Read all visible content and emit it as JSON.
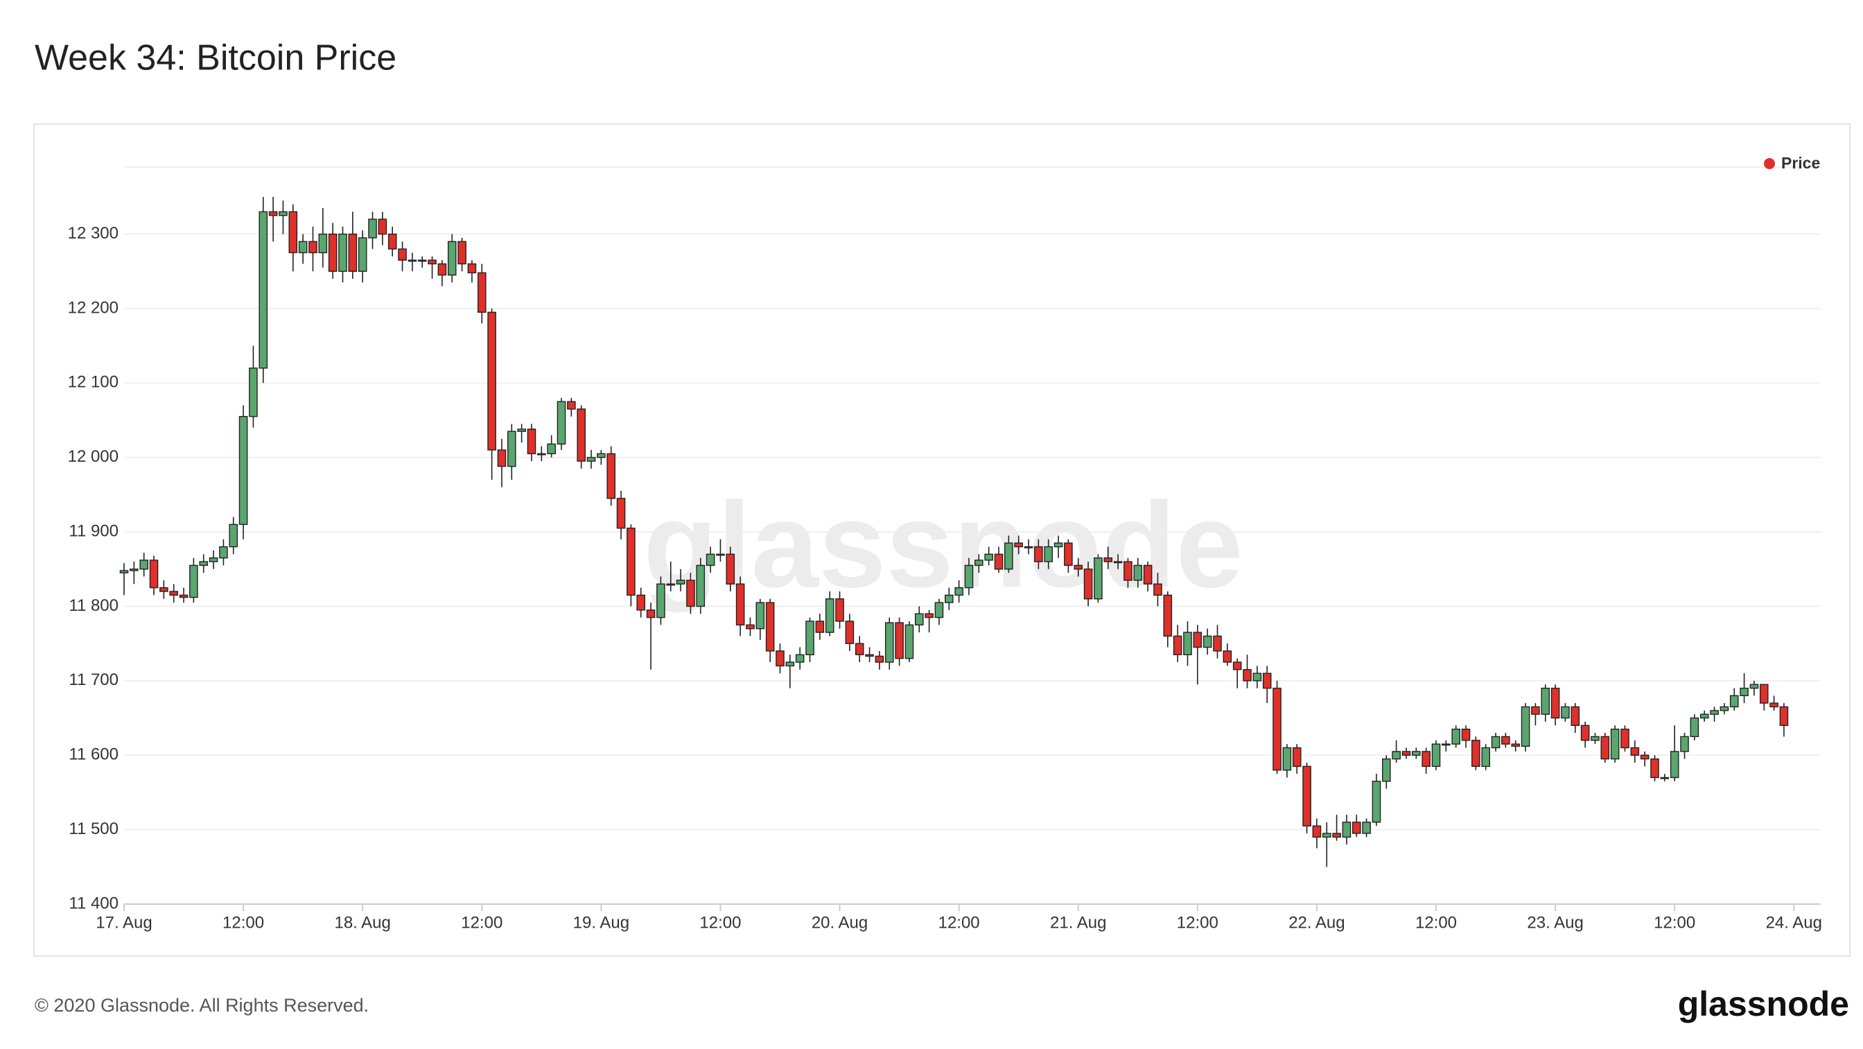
{
  "chart_data": {
    "type": "candlestick",
    "title": "Week 34: Bitcoin Price",
    "watermark": "glassnode",
    "x": [
      0,
      1,
      2,
      3,
      4,
      5,
      6,
      7,
      8,
      9,
      10,
      11,
      12,
      13,
      14,
      15,
      16,
      17,
      18,
      19,
      20,
      21,
      22,
      23,
      24,
      25,
      26,
      27,
      28,
      29,
      30,
      31,
      32,
      33,
      34,
      35,
      36,
      37,
      38,
      39,
      40,
      41,
      42,
      43,
      44,
      45,
      46,
      47,
      48,
      49,
      50,
      51,
      52,
      53,
      54,
      55,
      56,
      57,
      58,
      59,
      60,
      61,
      62,
      63,
      64,
      65,
      66,
      67,
      68,
      69,
      70,
      71,
      72,
      73,
      74,
      75,
      76,
      77,
      78,
      79,
      80,
      81,
      82,
      83,
      84,
      85,
      86,
      87,
      88,
      89,
      90,
      91,
      92,
      93,
      94,
      95,
      96,
      97,
      98,
      99,
      100,
      101,
      102,
      103,
      104,
      105,
      106,
      107,
      108,
      109,
      110,
      111,
      112,
      113,
      114,
      115,
      116,
      117,
      118,
      119,
      120,
      121,
      122,
      123,
      124,
      125,
      126,
      127,
      128,
      129,
      130,
      131,
      132,
      133,
      134,
      135,
      136,
      137,
      138,
      139,
      140,
      141,
      142,
      143,
      144,
      145,
      146,
      147,
      148,
      149,
      150,
      151,
      152,
      153,
      154,
      155,
      156,
      157,
      158,
      159,
      160,
      161,
      162,
      163,
      164,
      165,
      166,
      167
    ],
    "xlim": [
      0,
      170.7
    ],
    "xticks": [
      {
        "value": 0,
        "label": "17. Aug"
      },
      {
        "value": 12,
        "label": "12:00"
      },
      {
        "value": 24,
        "label": "18. Aug"
      },
      {
        "value": 36,
        "label": "12:00"
      },
      {
        "value": 48,
        "label": "19. Aug"
      },
      {
        "value": 60,
        "label": "12:00"
      },
      {
        "value": 72,
        "label": "20. Aug"
      },
      {
        "value": 84,
        "label": "12:00"
      },
      {
        "value": 96,
        "label": "21. Aug"
      },
      {
        "value": 108,
        "label": "12:00"
      },
      {
        "value": 120,
        "label": "22. Aug"
      },
      {
        "value": 132,
        "label": "12:00"
      },
      {
        "value": 144,
        "label": "23. Aug"
      },
      {
        "value": 156,
        "label": "12:00"
      },
      {
        "value": 168,
        "label": "24. Aug"
      }
    ],
    "ylim": [
      11400,
      12390
    ],
    "yticks": [
      {
        "value": 11400,
        "label": "11 400"
      },
      {
        "value": 11500,
        "label": "11 500"
      },
      {
        "value": 11600,
        "label": "11 600"
      },
      {
        "value": 11700,
        "label": "11 700"
      },
      {
        "value": 11800,
        "label": "11 800"
      },
      {
        "value": 11900,
        "label": "11 900"
      },
      {
        "value": 12000,
        "label": "12 000"
      },
      {
        "value": 12100,
        "label": "12 100"
      },
      {
        "value": 12200,
        "label": "12 200"
      },
      {
        "value": 12300,
        "label": "12 300"
      }
    ],
    "grid": true,
    "legend": "top-right",
    "series": [
      {
        "name": "Price",
        "color": "#e0302a",
        "up_color": "#5aa66f",
        "down_color": "#e0302a",
        "open": [
          11845,
          11848,
          11850,
          11862,
          11825,
          11820,
          11815,
          11812,
          11855,
          11860,
          11865,
          11880,
          11910,
          12055,
          12120,
          12330,
          12325,
          12330,
          12275,
          12290,
          12275,
          12300,
          12250,
          12300,
          12250,
          12295,
          12320,
          12300,
          12280,
          12265,
          12265,
          12265,
          12260,
          12245,
          12290,
          12260,
          12248,
          12195,
          12010,
          11988,
          12035,
          12038,
          12005,
          12005,
          12018,
          12075,
          12065,
          11995,
          12000,
          12005,
          11945,
          11905,
          11815,
          11795,
          11785,
          11830,
          11830,
          11835,
          11800,
          11855,
          11870,
          11870,
          11830,
          11775,
          11770,
          11805,
          11740,
          11720,
          11725,
          11735,
          11780,
          11765,
          11810,
          11780,
          11750,
          11735,
          11733,
          11725,
          11778,
          11730,
          11775,
          11790,
          11785,
          11805,
          11815,
          11825,
          11855,
          11862,
          11870,
          11850,
          11885,
          11880,
          11880,
          11860,
          11880,
          11885,
          11855,
          11850,
          11810,
          11865,
          11860,
          11860,
          11835,
          11855,
          11830,
          11815,
          11760,
          11735,
          11765,
          11745,
          11760,
          11740,
          11725,
          11715,
          11700,
          11710,
          11690,
          11580,
          11610,
          11585,
          11505,
          11490,
          11495,
          11490,
          11510,
          11495,
          11510,
          11565,
          11595,
          11605,
          11600,
          11605,
          11585,
          11615,
          11615,
          11635,
          11620,
          11585,
          11610,
          11625,
          11615,
          11612,
          11665,
          11655,
          11690,
          11650,
          11665,
          11640,
          11620,
          11625,
          11595,
          11635,
          11610,
          11600,
          11595,
          11570,
          11570,
          11605,
          11625,
          11650,
          11655,
          11660,
          11665,
          11680,
          11690,
          11695,
          11670,
          11665
        ],
        "high": [
          11858,
          11860,
          11872,
          11868,
          11835,
          11830,
          11825,
          11865,
          11870,
          11875,
          11890,
          11920,
          12070,
          12150,
          12350,
          12350,
          12345,
          12340,
          12300,
          12310,
          12335,
          12315,
          12310,
          12330,
          12305,
          12330,
          12330,
          12310,
          12290,
          12275,
          12270,
          12270,
          12265,
          12300,
          12295,
          12265,
          12260,
          12200,
          12025,
          12045,
          12045,
          12045,
          12015,
          12030,
          12080,
          12080,
          12070,
          12010,
          12010,
          12015,
          11955,
          11910,
          11825,
          11805,
          11840,
          11860,
          11850,
          11845,
          11865,
          11880,
          11890,
          11880,
          11840,
          11785,
          11810,
          11810,
          11750,
          11735,
          11745,
          11785,
          11790,
          11820,
          11820,
          11790,
          11760,
          11745,
          11740,
          11785,
          11785,
          11780,
          11800,
          11795,
          11810,
          11825,
          11835,
          11865,
          11870,
          11880,
          11880,
          11895,
          11895,
          11890,
          11890,
          11890,
          11895,
          11890,
          11865,
          11860,
          11870,
          11880,
          11870,
          11865,
          11865,
          11860,
          11845,
          11820,
          11775,
          11780,
          11775,
          11770,
          11775,
          11750,
          11730,
          11735,
          11720,
          11720,
          11700,
          11615,
          11615,
          11590,
          11515,
          11510,
          11520,
          11520,
          11520,
          11515,
          11575,
          11600,
          11620,
          11610,
          11610,
          11610,
          11620,
          11620,
          11640,
          11640,
          11625,
          11615,
          11630,
          11630,
          11620,
          11670,
          11670,
          11695,
          11695,
          11670,
          11670,
          11645,
          11630,
          11630,
          11640,
          11640,
          11620,
          11605,
          11600,
          11575,
          11640,
          11630,
          11655,
          11660,
          11665,
          11670,
          11690,
          11710,
          11700,
          11695,
          11680,
          11670
        ],
        "low": [
          11815,
          11830,
          11840,
          11815,
          11810,
          11805,
          11805,
          11805,
          11845,
          11850,
          11855,
          11870,
          11890,
          12040,
          12100,
          12290,
          12300,
          12250,
          12260,
          12250,
          12255,
          12240,
          12235,
          12240,
          12235,
          12280,
          12285,
          12270,
          12250,
          12250,
          12255,
          12240,
          12230,
          12235,
          12250,
          12235,
          12180,
          11970,
          11960,
          11970,
          12020,
          11995,
          11995,
          12000,
          12010,
          12055,
          11985,
          11985,
          11990,
          11935,
          11890,
          11800,
          11785,
          11715,
          11775,
          11820,
          11820,
          11790,
          11790,
          11845,
          11860,
          11820,
          11760,
          11760,
          11755,
          11725,
          11710,
          11690,
          11715,
          11725,
          11755,
          11760,
          11770,
          11740,
          11725,
          11725,
          11715,
          11715,
          11720,
          11725,
          11765,
          11765,
          11775,
          11795,
          11805,
          11815,
          11845,
          11855,
          11845,
          11845,
          11870,
          11870,
          11850,
          11850,
          11865,
          11845,
          11840,
          11800,
          11805,
          11850,
          11850,
          11825,
          11825,
          11820,
          11800,
          11745,
          11725,
          11720,
          11695,
          11735,
          11730,
          11720,
          11690,
          11690,
          11690,
          11670,
          11575,
          11570,
          11575,
          11495,
          11475,
          11450,
          11485,
          11480,
          11490,
          11490,
          11505,
          11555,
          11590,
          11595,
          11595,
          11575,
          11580,
          11605,
          11610,
          11610,
          11580,
          11580,
          11605,
          11610,
          11605,
          11605,
          11640,
          11645,
          11640,
          11645,
          11630,
          11610,
          11615,
          11590,
          11590,
          11605,
          11590,
          11585,
          11565,
          11565,
          11565,
          11595,
          11620,
          11645,
          11645,
          11655,
          11660,
          11670,
          11680,
          11660,
          11660,
          11625
        ],
        "close": [
          11848,
          11850,
          11862,
          11825,
          11820,
          11815,
          11812,
          11855,
          11860,
          11865,
          11880,
          11910,
          12055,
          12120,
          12330,
          12325,
          12330,
          12275,
          12290,
          12275,
          12300,
          12250,
          12300,
          12250,
          12295,
          12320,
          12300,
          12280,
          12265,
          12265,
          12265,
          12260,
          12245,
          12290,
          12260,
          12248,
          12195,
          12010,
          11988,
          12035,
          12038,
          12005,
          12005,
          12018,
          12075,
          12065,
          11995,
          12000,
          12005,
          11945,
          11905,
          11815,
          11795,
          11785,
          11830,
          11830,
          11835,
          11800,
          11855,
          11870,
          11870,
          11830,
          11775,
          11770,
          11805,
          11740,
          11720,
          11725,
          11735,
          11780,
          11765,
          11810,
          11780,
          11750,
          11735,
          11733,
          11725,
          11778,
          11730,
          11775,
          11790,
          11785,
          11805,
          11815,
          11825,
          11855,
          11862,
          11870,
          11850,
          11885,
          11880,
          11880,
          11860,
          11880,
          11885,
          11855,
          11850,
          11810,
          11865,
          11860,
          11860,
          11835,
          11855,
          11830,
          11815,
          11760,
          11735,
          11765,
          11745,
          11760,
          11740,
          11725,
          11715,
          11700,
          11710,
          11690,
          11580,
          11610,
          11585,
          11505,
          11490,
          11495,
          11490,
          11510,
          11495,
          11510,
          11565,
          11595,
          11605,
          11600,
          11605,
          11585,
          11615,
          11615,
          11635,
          11620,
          11585,
          11610,
          11625,
          11615,
          11612,
          11665,
          11655,
          11690,
          11650,
          11665,
          11640,
          11620,
          11625,
          11595,
          11635,
          11610,
          11600,
          11595,
          11570,
          11570,
          11605,
          11625,
          11650,
          11655,
          11660,
          11665,
          11680,
          11690,
          11695,
          11670,
          11665,
          11640
        ]
      }
    ]
  },
  "footer": {
    "copyright": "© 2020 Glassnode. All Rights Reserved.",
    "logo": "glassnode"
  }
}
